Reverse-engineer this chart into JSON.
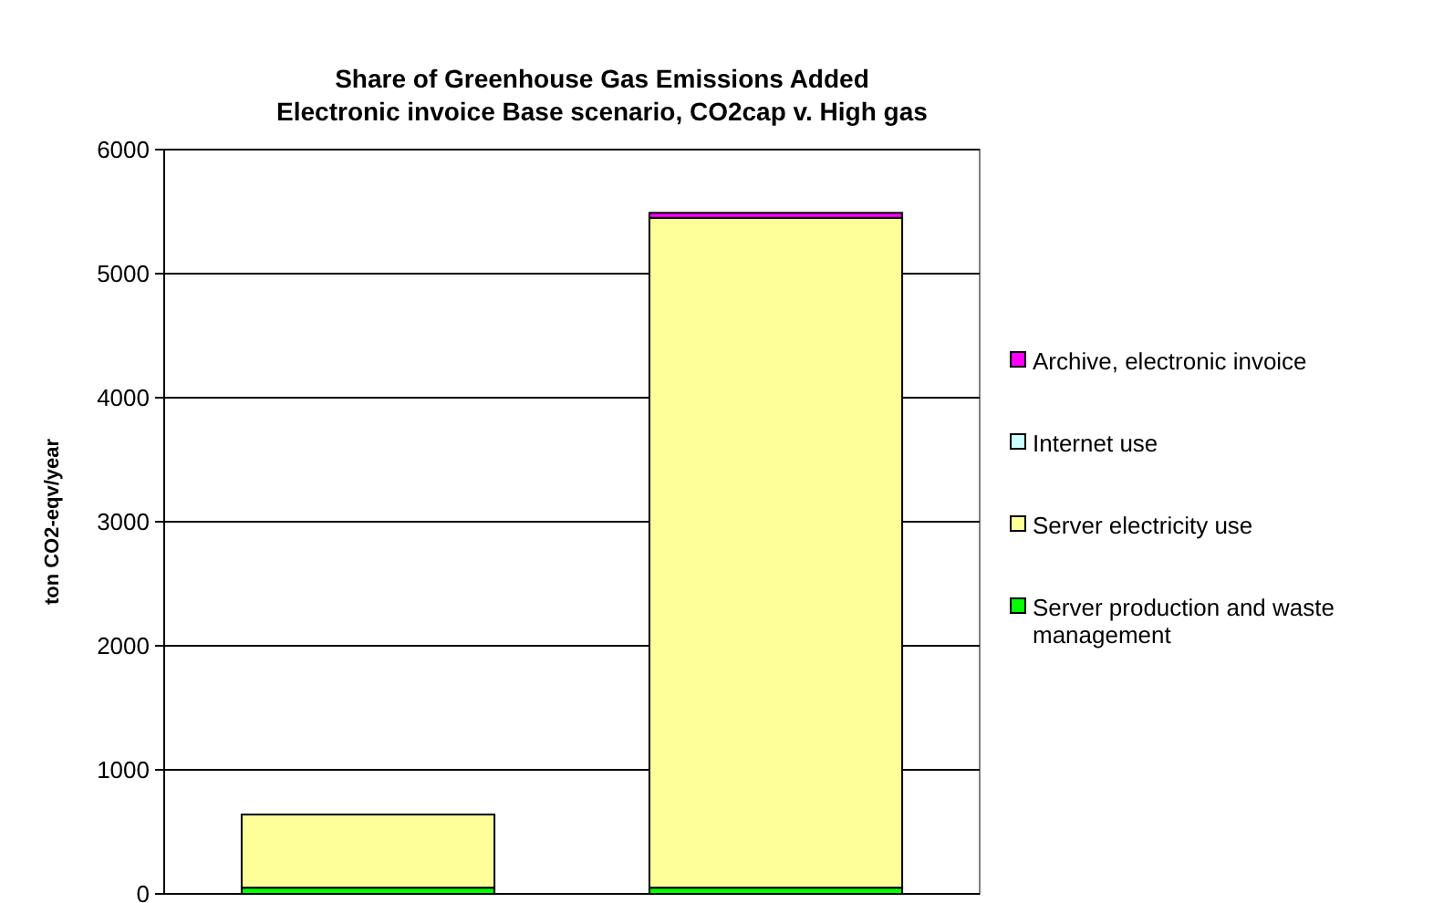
{
  "chart_data": {
    "type": "bar",
    "title": "Share of Greenhouse Gas Emissions Added",
    "subtitle": "Electronic invoice Base scenario, CO2cap v. High gas",
    "ylabel": "ton CO2-eqv/year",
    "categories": [
      null,
      null
    ],
    "stacked": true,
    "series": [
      {
        "name": "Server production and waste management",
        "color": "#00ff00",
        "values": [
          50,
          50
        ]
      },
      {
        "name": "Server electricity use",
        "color": "#ffff99",
        "values": [
          590,
          5400
        ]
      },
      {
        "name": "Internet use",
        "color": "#ccffff",
        "values": [
          null,
          null
        ]
      },
      {
        "name": "Archive, electronic invoice",
        "color": "#ff00ff",
        "values": [
          null,
          40
        ]
      }
    ],
    "ylim": [
      0,
      6000
    ],
    "yticks": [
      0,
      1000,
      2000,
      3000,
      4000,
      5000,
      6000
    ],
    "grid": "y",
    "legend": "right"
  }
}
